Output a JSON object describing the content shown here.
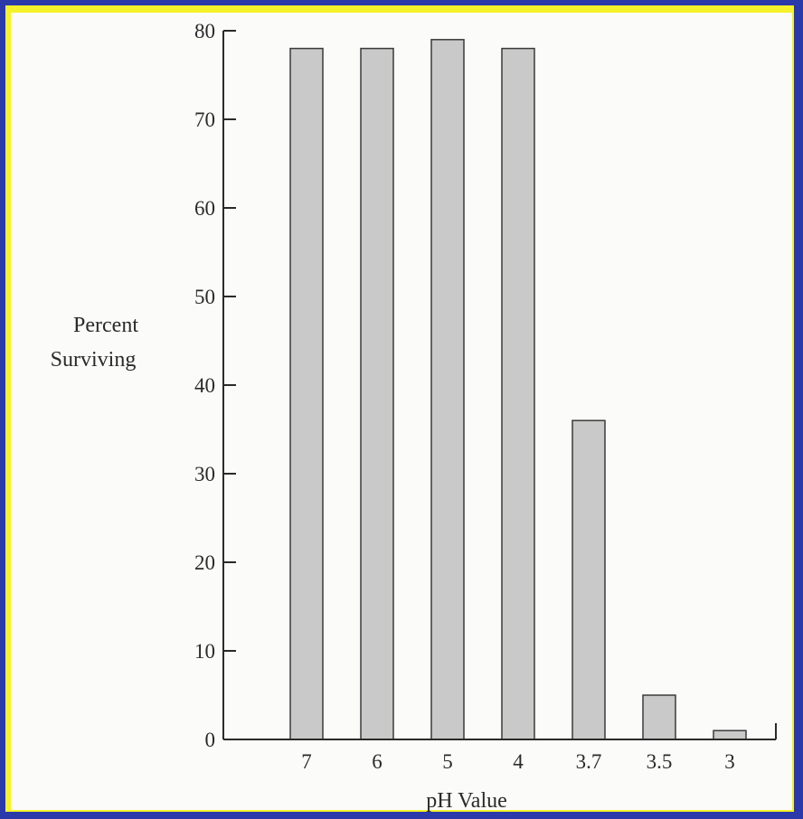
{
  "colors": {
    "frame_outer": "#2b3aa8",
    "frame_inner": "#f5f12a",
    "paper": "#fbfbf9",
    "bar_fill": "#c9c9c9",
    "bar_stroke": "#3a3a3a",
    "axis": "#2a2a2a"
  },
  "chart_data": {
    "type": "bar",
    "title": "",
    "xlabel": "pH Value",
    "ylabel_lines": [
      "Percent",
      "Surviving"
    ],
    "categories": [
      "7",
      "6",
      "5",
      "4",
      "3.7",
      "3.5",
      "3"
    ],
    "values": [
      78,
      78,
      79,
      78,
      36,
      5,
      1
    ],
    "ylim": [
      0,
      80
    ],
    "yticks": [
      0,
      10,
      20,
      30,
      40,
      50,
      60,
      70,
      80
    ],
    "grid": false,
    "legend": "none"
  }
}
